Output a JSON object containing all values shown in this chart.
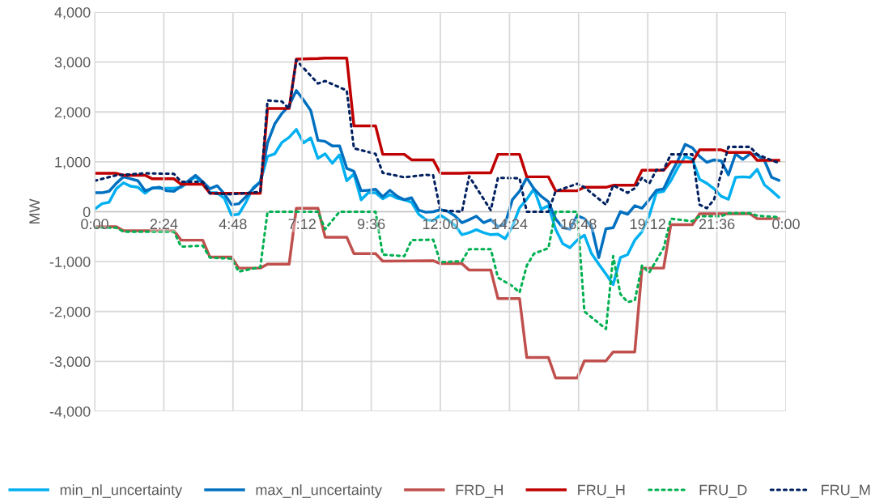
{
  "chart_data": {
    "type": "line",
    "ylabel": "MW",
    "legend": "bottom",
    "grid": true,
    "line_style": "solid",
    "marker": "none",
    "xlim": [
      0,
      24
    ],
    "ylim": [
      -4000,
      4000
    ],
    "xticks": [
      {
        "value": 0,
        "label": "0:00"
      },
      {
        "value": 2.4,
        "label": "2:24"
      },
      {
        "value": 4.8,
        "label": "4:48"
      },
      {
        "value": 7.2,
        "label": "7:12"
      },
      {
        "value": 9.6,
        "label": "9:36"
      },
      {
        "value": 12,
        "label": "12:00"
      },
      {
        "value": 14.4,
        "label": "14:24"
      },
      {
        "value": 16.8,
        "label": "16:48"
      },
      {
        "value": 19.2,
        "label": "19:12"
      },
      {
        "value": 21.6,
        "label": "21:36"
      },
      {
        "value": 24,
        "label": "0:00"
      }
    ],
    "yticks": [
      {
        "value": -4000,
        "label": "-4,000"
      },
      {
        "value": -3000,
        "label": "-3,000"
      },
      {
        "value": -2000,
        "label": "-2,000"
      },
      {
        "value": -1000,
        "label": "-1,000"
      },
      0,
      {
        "value": 1000,
        "label": "1,000"
      },
      {
        "value": 2000,
        "label": "2,000"
      },
      {
        "value": 3000,
        "label": "3,000"
      },
      {
        "value": 4000,
        "label": "4,000"
      }
    ],
    "x": [
      0,
      0.25,
      0.5,
      0.75,
      1,
      1.25,
      1.5,
      1.75,
      2,
      2.25,
      2.5,
      2.75,
      3,
      3.5,
      3.75,
      4,
      4.25,
      4.5,
      4.75,
      5,
      5.25,
      5.5,
      5.75,
      6,
      6.25,
      6.5,
      6.75,
      7,
      7.25,
      7.5,
      7.75,
      8,
      8.25,
      8.5,
      8.75,
      9,
      9.25,
      9.5,
      9.75,
      10,
      10.25,
      10.5,
      10.75,
      11,
      11.25,
      11.5,
      11.75,
      12,
      12.25,
      12.5,
      12.75,
      13,
      13.25,
      13.5,
      13.75,
      14,
      14.25,
      14.5,
      14.75,
      15,
      15.25,
      15.5,
      15.75,
      16,
      16.25,
      16.5,
      16.75,
      17,
      17.25,
      17.5,
      17.75,
      18,
      18.25,
      18.5,
      18.75,
      19,
      19.25,
      19.5,
      19.75,
      20,
      20.25,
      20.5,
      20.75,
      21,
      21.25,
      21.5,
      21.75,
      22,
      22.25,
      22.5,
      22.75,
      23,
      23.25,
      23.5,
      23.75
    ],
    "series": [
      {
        "name": "min_nl_uncertainty",
        "color": "#00b0f0",
        "values": [
          50,
          160,
          190,
          460,
          580,
          510,
          490,
          370,
          480,
          470,
          470,
          470,
          490,
          700,
          570,
          380,
          380,
          270,
          -70,
          -50,
          190,
          480,
          600,
          1110,
          1160,
          1390,
          1490,
          1650,
          1380,
          1480,
          1070,
          1160,
          970,
          1140,
          620,
          760,
          240,
          380,
          380,
          260,
          340,
          270,
          240,
          190,
          -50,
          -160,
          -180,
          -70,
          -160,
          -270,
          -460,
          -420,
          -360,
          -420,
          -460,
          -450,
          -540,
          -300,
          80,
          250,
          460,
          50,
          120,
          -350,
          -640,
          -720,
          -570,
          -470,
          -840,
          -1050,
          -1250,
          -1460,
          -920,
          -860,
          -570,
          -400,
          -80,
          380,
          410,
          620,
          890,
          1110,
          1050,
          650,
          570,
          460,
          310,
          250,
          690,
          700,
          690,
          850,
          540,
          420,
          290
        ]
      },
      {
        "name": "max_nl_uncertainty",
        "color": "#0070c0",
        "values": [
          380,
          380,
          410,
          570,
          700,
          660,
          620,
          420,
          470,
          490,
          420,
          410,
          510,
          730,
          600,
          460,
          520,
          360,
          140,
          160,
          300,
          460,
          600,
          1380,
          1760,
          1970,
          2130,
          2430,
          2240,
          2030,
          1430,
          1410,
          1320,
          1320,
          870,
          810,
          420,
          430,
          450,
          300,
          430,
          310,
          240,
          280,
          30,
          -10,
          0,
          40,
          10,
          -80,
          -220,
          -160,
          -90,
          -220,
          -160,
          -300,
          -240,
          240,
          410,
          680,
          460,
          310,
          200,
          -140,
          -320,
          -350,
          -80,
          -140,
          -300,
          -920,
          -340,
          -320,
          0,
          -50,
          120,
          70,
          240,
          430,
          460,
          760,
          1030,
          1350,
          1280,
          1110,
          990,
          1040,
          1020,
          740,
          1160,
          1050,
          1160,
          1140,
          1030,
          690,
          630
        ]
      },
      {
        "name": "FRD_H",
        "color": "#c0504d",
        "x": [
          0,
          0.75,
          1,
          2.75,
          3,
          3.75,
          4,
          4.75,
          5,
          5.75,
          6,
          6.75,
          7,
          7.75,
          8,
          8.75,
          9,
          9.75,
          10,
          11.75,
          12,
          12.75,
          13,
          13.75,
          14,
          14.75,
          15,
          15.75,
          16,
          16.75,
          17,
          17.75,
          18,
          18.75,
          19,
          19.75,
          20,
          20.75,
          21,
          22.75,
          23,
          23.75
        ],
        "values": [
          -300,
          -300,
          -380,
          -380,
          -570,
          -570,
          -910,
          -910,
          -1130,
          -1130,
          -1050,
          -1050,
          70,
          70,
          -510,
          -510,
          -840,
          -840,
          -990,
          -980,
          -1040,
          -1040,
          -1170,
          -1170,
          -1740,
          -1740,
          -2920,
          -2920,
          -3330,
          -3330,
          -2990,
          -2990,
          -2810,
          -2810,
          -1130,
          -1130,
          -260,
          -260,
          -40,
          -40,
          -140,
          -140
        ]
      },
      {
        "name": "FRU_H",
        "color": "#c00000",
        "x": [
          0,
          0.75,
          1,
          1.75,
          2,
          2.75,
          3,
          3.75,
          4,
          5.75,
          6,
          6.75,
          7,
          7.75,
          8,
          8.75,
          9,
          9.75,
          10,
          10.75,
          11,
          11.75,
          12,
          12.75,
          13,
          13.75,
          14,
          14.75,
          15,
          15.75,
          16,
          16.75,
          17,
          17.75,
          18,
          18.75,
          19,
          19.75,
          20,
          20.75,
          21,
          21.75,
          22,
          22.75,
          23,
          23.75
        ],
        "values": [
          770,
          770,
          730,
          730,
          660,
          660,
          550,
          550,
          370,
          370,
          2070,
          2070,
          3060,
          3070,
          3080,
          3080,
          1720,
          1720,
          1150,
          1150,
          1040,
          1040,
          770,
          770,
          780,
          780,
          1150,
          1150,
          700,
          700,
          420,
          420,
          490,
          490,
          530,
          530,
          830,
          830,
          1000,
          1000,
          1240,
          1240,
          1190,
          1190,
          1030,
          1030
        ]
      },
      {
        "name": "FRU_D",
        "color": "#00b050",
        "line_style": "dotted",
        "x": [
          0,
          0.75,
          1,
          2.75,
          3,
          3.75,
          4,
          4.75,
          5,
          5.75,
          6,
          7.75,
          8,
          8.5,
          9.75,
          10,
          10.75,
          11,
          11.75,
          12,
          12.75,
          13,
          13.75,
          14,
          14.5,
          14.75,
          15,
          15.25,
          15.75,
          16,
          16.75,
          17,
          17.75,
          18,
          18.25,
          18.5,
          18.75,
          19,
          19.25,
          19.75,
          20,
          20.75,
          21,
          21.75,
          22,
          22.75,
          23,
          23.75
        ],
        "values": [
          -320,
          -320,
          -400,
          -400,
          -700,
          -680,
          -920,
          -940,
          -1200,
          -1110,
          0,
          0,
          -350,
          0,
          0,
          -860,
          -890,
          -570,
          -560,
          -1010,
          -990,
          -750,
          -750,
          -1320,
          -1490,
          -1620,
          -1080,
          -840,
          -730,
          0,
          0,
          -2000,
          -2350,
          -890,
          -1650,
          -1810,
          -1780,
          -1080,
          -1220,
          -730,
          -140,
          -190,
          -90,
          -90,
          -30,
          -30,
          -80,
          -110
        ]
      },
      {
        "name": "FRU_M",
        "color": "#002060",
        "line_style": "dotted",
        "x": [
          0,
          0.75,
          1.75,
          2.75,
          3,
          3.75,
          4,
          4.75,
          5.75,
          6,
          6.5,
          6.75,
          7,
          7.25,
          7.75,
          8,
          8.75,
          9,
          9.75,
          10,
          10.75,
          11.5,
          11.75,
          12,
          12.75,
          13,
          13.75,
          14,
          14.75,
          15,
          15.75,
          16,
          16.75,
          17,
          17.75,
          18,
          18.5,
          18.75,
          19,
          19.25,
          19.5,
          19.75,
          20,
          20.75,
          21,
          21.25,
          21.5,
          22,
          22.75,
          23,
          23.5,
          23.75
        ],
        "values": [
          620,
          730,
          770,
          760,
          600,
          600,
          370,
          350,
          400,
          2230,
          2210,
          2060,
          3040,
          2880,
          2570,
          2620,
          2430,
          1270,
          1160,
          780,
          690,
          740,
          730,
          30,
          0,
          710,
          30,
          680,
          670,
          0,
          0,
          410,
          560,
          490,
          140,
          530,
          380,
          470,
          680,
          560,
          840,
          840,
          1150,
          1150,
          140,
          70,
          240,
          1300,
          1300,
          1150,
          1030,
          980
        ]
      }
    ]
  }
}
